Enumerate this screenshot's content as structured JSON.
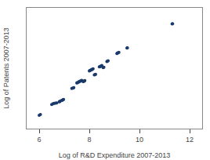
{
  "chart_data": {
    "type": "scatter",
    "xlabel": "Log of R&D Expenditure 2007-2013",
    "ylabel": "Log of Patents 2007-2013",
    "xlim": [
      5.5,
      12.5
    ],
    "ylim": [
      2.5,
      11.5
    ],
    "xticks": [
      6,
      8,
      10,
      12
    ],
    "yticks": [],
    "tick_labels": "x",
    "grid": false,
    "color": "#1a3a6b",
    "x": [
      6.0,
      6.05,
      6.5,
      6.55,
      6.6,
      6.65,
      6.7,
      6.8,
      6.82,
      6.84,
      6.9,
      6.92,
      6.95,
      6.97,
      7.3,
      7.35,
      7.38,
      7.5,
      7.52,
      7.55,
      7.58,
      7.6,
      7.62,
      7.65,
      7.68,
      7.7,
      7.75,
      7.78,
      7.8,
      7.82,
      8.0,
      8.02,
      8.05,
      8.08,
      8.1,
      8.12,
      8.15,
      8.2,
      8.22,
      8.25,
      8.4,
      8.42,
      8.45,
      8.48,
      8.5,
      8.55,
      8.58,
      8.7,
      8.72,
      8.75,
      9.1,
      9.12,
      9.15,
      9.18,
      9.5,
      9.52,
      11.3,
      11.32
    ],
    "values": [
      3.5,
      3.55,
      4.3,
      4.35,
      4.38,
      4.4,
      4.42,
      4.5,
      4.52,
      4.55,
      4.6,
      4.62,
      4.65,
      4.68,
      5.5,
      5.52,
      5.55,
      5.9,
      5.92,
      5.95,
      5.98,
      6.0,
      6.02,
      6.05,
      6.08,
      6.1,
      6.0,
      6.02,
      6.05,
      6.08,
      6.8,
      6.82,
      6.85,
      6.88,
      6.9,
      6.92,
      6.95,
      6.5,
      6.52,
      6.55,
      7.1,
      7.12,
      7.15,
      7.18,
      7.2,
      7.05,
      7.08,
      7.5,
      7.52,
      7.55,
      8.1,
      8.12,
      8.15,
      8.18,
      8.5,
      8.52,
      10.3,
      10.32
    ]
  }
}
